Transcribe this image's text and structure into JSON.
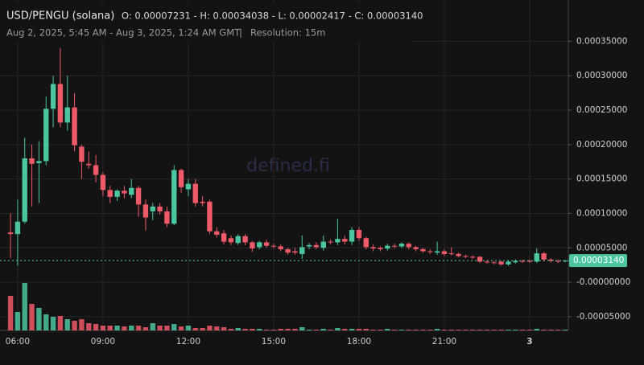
{
  "chart_data": {
    "type": "candlestick",
    "title": "USD/PENGU (solana)",
    "summary": "O: 0.00007231 - H: 0.00034038 - L: 0.00002417 - C: 0.00003140",
    "subtitle": "Aug 2, 2025, 5:45 AM - Aug 3, 2025, 1:24 AM GMT",
    "resolution": "Resolution: 15m",
    "watermark": "defined.fi",
    "up_color": "#4cc6a2",
    "down_color": "#ef5a68",
    "x": [
      5.75,
      6,
      6.25,
      6.5,
      6.75,
      7,
      7.25,
      7.5,
      7.75,
      8,
      8.25,
      8.5,
      8.75,
      9,
      9.25,
      9.5,
      9.75,
      10,
      10.25,
      10.5,
      10.75,
      11,
      11.25,
      11.5,
      11.75,
      12,
      12.25,
      12.5,
      12.75,
      13,
      13.25,
      13.5,
      13.75,
      14,
      14.25,
      14.5,
      14.75,
      15,
      15.25,
      15.5,
      15.75,
      16,
      16.25,
      16.5,
      16.75,
      17,
      17.25,
      17.5,
      17.75,
      18,
      18.25,
      18.5,
      18.75,
      19,
      19.25,
      19.5,
      19.75,
      20,
      20.25,
      20.5,
      20.75,
      21,
      21.25,
      21.5,
      21.75,
      22,
      22.25,
      22.5,
      22.75,
      23,
      23.25,
      23.5,
      23.75,
      24,
      24.25,
      24.5,
      24.75,
      25,
      25.25
    ],
    "open": [
      7.23e-05,
      7e-05,
      8.8e-05,
      0.00018,
      0.000173,
      0.000176,
      0.000252,
      0.000288,
      0.000232,
      0.000254,
      0.000197,
      0.000172,
      0.00017,
      0.000156,
      0.000134,
      0.000124,
      0.000133,
      0.000127,
      0.000137,
      0.000113,
      0.000103,
      0.00011,
      0.000103,
      8.5e-05,
      0.000163,
      0.000135,
      0.000143,
      0.000117,
      0.000117,
      7.4e-05,
      7.1e-05,
      6.4e-05,
      5.7e-05,
      6.7e-05,
      5.8e-05,
      5.1e-05,
      5.8e-05,
      5.3e-05,
      5.2e-05,
      4.8e-05,
      4.5e-05,
      4.1e-05,
      5.2e-05,
      5.4e-05,
      5e-05,
      5.9e-05,
      5.8e-05,
      6.3e-05,
      5.9e-05,
      7.6e-05,
      6.4e-05,
      5.1e-05,
      5e-05,
      4.9e-05,
      5.3e-05,
      5.2e-05,
      5.6e-05,
      5.1e-05,
      4.8e-05,
      4.5e-05,
      4.3e-05,
      4.5e-05,
      4.2e-05,
      4.1e-05,
      3.8e-05,
      3.7e-05,
      3.7e-05,
      3e-05,
      2.9e-05,
      3e-05,
      2.6e-05,
      2.9e-05,
      3.1e-05,
      3.1e-05,
      3e-05,
      4.2e-05,
      3.3e-05,
      3.1e-05,
      3.1e-05
    ],
    "high": [
      0.0001,
      0.00012,
      0.00021,
      0.0002,
      0.000205,
      0.00027,
      0.0003,
      0.00034038,
      0.0003,
      0.000275,
      0.0002,
      0.00019,
      0.000185,
      0.00016,
      0.00014,
      0.000135,
      0.00014,
      0.00015,
      0.00014,
      0.00012,
      0.000115,
      0.000115,
      0.00011,
      0.00017,
      0.000165,
      0.00015,
      0.00015,
      0.000125,
      0.00012,
      8e-05,
      7.6e-05,
      6.8e-05,
      7e-05,
      7e-05,
      6e-05,
      6e-05,
      6.2e-05,
      5.6e-05,
      5.5e-05,
      5e-05,
      5e-05,
      6.8e-05,
      5.7e-05,
      5.8e-05,
      6.8e-05,
      6.2e-05,
      9.2e-05,
      6.8e-05,
      8e-05,
      8e-05,
      6.6e-05,
      5.5e-05,
      5.2e-05,
      5.6e-05,
      5.6e-05,
      5.8e-05,
      5.8e-05,
      5.3e-05,
      5e-05,
      4.8e-05,
      5.9e-05,
      4.8e-05,
      5.1e-05,
      4.3e-05,
      4e-05,
      3.9e-05,
      3.8e-05,
      3.2e-05,
      3.1e-05,
      3.1e-05,
      3.2e-05,
      3.3e-05,
      3.3e-05,
      3.3e-05,
      4.9e-05,
      4.4e-05,
      3.5e-05,
      3.3e-05,
      3.2e-05
    ],
    "low": [
      3.5e-05,
      2.417e-05,
      8.5e-05,
      0.00011,
      0.000115,
      0.00017,
      0.000225,
      0.000225,
      0.00022,
      0.00019,
      0.00015,
      0.000165,
      0.000145,
      0.000125,
      0.000115,
      0.000118,
      0.000122,
      0.000122,
      9.5e-05,
      7.5e-05,
      9e-05,
      9.8e-05,
      8e-05,
      8.3e-05,
      0.00013,
      0.000125,
      0.00011,
      0.00011,
      7e-05,
      6.5e-05,
      5.5e-05,
      5.4e-05,
      5.4e-05,
      5.4e-05,
      4.4e-05,
      4.8e-05,
      5e-05,
      4.9e-05,
      4.5e-05,
      4e-05,
      4e-05,
      3.4e-05,
      4.8e-05,
      4.8e-05,
      4.6e-05,
      5.5e-05,
      5.4e-05,
      5.5e-05,
      5.4e-05,
      6e-05,
      4.8e-05,
      4.5e-05,
      4.5e-05,
      4.6e-05,
      4.9e-05,
      5e-05,
      4.8e-05,
      4.5e-05,
      4.3e-05,
      4.1e-05,
      4e-05,
      3.8e-05,
      3.9e-05,
      3.6e-05,
      3.5e-05,
      3.4e-05,
      2.8e-05,
      2.7e-05,
      2.6e-05,
      2.4e-05,
      2.4e-05,
      2.7e-05,
      2.8e-05,
      2.8e-05,
      2.8e-05,
      3e-05,
      2.9e-05,
      2.8e-05,
      2.9e-05
    ],
    "close": [
      7e-05,
      8.8e-05,
      0.00018,
      0.000172,
      0.000176,
      0.000252,
      0.000288,
      0.000232,
      0.000254,
      0.000199,
      0.000175,
      0.00017,
      0.000156,
      0.000134,
      0.000124,
      0.000133,
      0.000129,
      0.000137,
      0.000113,
      9.4e-05,
      0.00011,
      0.000103,
      8.5e-05,
      0.000163,
      0.000138,
      0.000143,
      0.000115,
      0.000115,
      7.4e-05,
      6.9e-05,
      5.9e-05,
      5.8e-05,
      6.7e-05,
      5.8e-05,
      4.9e-05,
      5.8e-05,
      5.3e-05,
      5.2e-05,
      4.8e-05,
      4.3e-05,
      4.3e-05,
      5.1e-05,
      5.4e-05,
      5.1e-05,
      5.9e-05,
      5.8e-05,
      6.3e-05,
      5.9e-05,
      7.6e-05,
      6.4e-05,
      5.1e-05,
      4.9e-05,
      4.8e-05,
      5.3e-05,
      5.2e-05,
      5.6e-05,
      5.1e-05,
      4.8e-05,
      4.5e-05,
      4.4e-05,
      4.5e-05,
      4.1e-05,
      4.1e-05,
      3.8e-05,
      3.7e-05,
      3.6e-05,
      3e-05,
      2.9e-05,
      2.8e-05,
      2.6e-05,
      3e-05,
      3.1e-05,
      3e-05,
      3e-05,
      4.2e-05,
      3.3e-05,
      3.1e-05,
      3e-05,
      3.14e-05
    ],
    "volume": [
      43,
      23,
      59,
      33,
      28,
      20,
      17,
      18,
      14,
      12,
      14,
      9,
      8,
      6,
      6,
      6,
      5,
      6,
      6,
      4,
      9,
      6,
      6,
      8,
      5,
      6,
      3,
      3,
      6,
      5,
      4,
      2,
      3,
      2,
      2,
      2,
      1,
      1,
      2,
      2,
      2,
      4,
      1,
      1,
      2,
      1,
      3,
      2,
      2,
      2,
      2,
      1,
      1,
      2,
      1,
      1,
      1,
      1,
      1,
      1,
      2,
      1,
      1,
      1,
      1,
      1,
      1,
      1,
      1,
      1,
      1,
      1,
      1,
      1,
      2,
      1,
      1,
      1,
      1
    ],
    "volume_lim": [
      0,
      60
    ],
    "last_price": {
      "value": 3.14e-05,
      "label": "0.00003140"
    },
    "xlim": [
      5.38,
      25.36
    ],
    "xticks": [
      {
        "value": 6,
        "label": "06:00"
      },
      {
        "value": 9,
        "label": "09:00"
      },
      {
        "value": 12,
        "label": "12:00"
      },
      {
        "value": 15,
        "label": "15:00"
      },
      {
        "value": 18,
        "label": "18:00"
      },
      {
        "value": 21,
        "label": "21:00"
      },
      {
        "value": 24,
        "label": "3"
      }
    ],
    "ylim": [
      -7e-05,
      0.00041
    ],
    "yticks": [
      {
        "value": 0.00035,
        "label": "0.00035000"
      },
      {
        "value": 0.0003,
        "label": "0.00030000"
      },
      {
        "value": 0.00025,
        "label": "0.00025000"
      },
      {
        "value": 0.0002,
        "label": "0.00020000"
      },
      {
        "value": 0.00015,
        "label": "0.00015000"
      },
      {
        "value": 0.0001,
        "label": "0.00010000"
      },
      {
        "value": 5e-05,
        "label": "0.00005000"
      },
      {
        "value": 0,
        "label": "-0.00000000"
      },
      {
        "value": -5e-05,
        "label": "-0.00005000"
      }
    ],
    "grid": true
  }
}
